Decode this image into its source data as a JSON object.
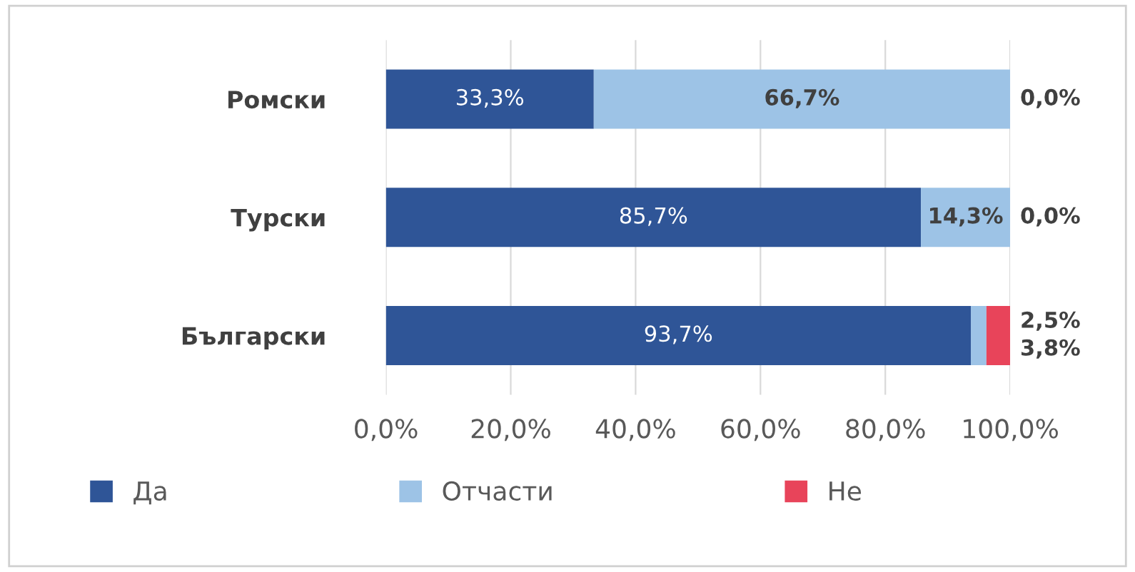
{
  "chart_data": {
    "type": "bar",
    "orientation": "horizontal",
    "stacked": true,
    "categories": [
      "Ромски",
      "Турски",
      "Български"
    ],
    "series": [
      {
        "name": "Да",
        "color": "#2f5597",
        "values": [
          33.3,
          85.7,
          93.7
        ],
        "value_labels": [
          "33,3%",
          "85,7%",
          "93,7%"
        ]
      },
      {
        "name": "Отчасти",
        "color": "#9dc3e6",
        "values": [
          66.7,
          14.3,
          2.5
        ],
        "value_labels": [
          "66,7%",
          "14,3%",
          "2,5%"
        ]
      },
      {
        "name": "Не",
        "color": "#e8445a",
        "values": [
          0.0,
          0.0,
          3.8
        ],
        "value_labels": [
          "0,0%",
          "0,0%",
          "3,8%"
        ]
      }
    ],
    "xlim": [
      0,
      100
    ],
    "xticks": [
      {
        "value": 0,
        "label": "0,0%"
      },
      {
        "value": 20,
        "label": "20,0%"
      },
      {
        "value": 40,
        "label": "40,0%"
      },
      {
        "value": 60,
        "label": "60,0%"
      },
      {
        "value": 80,
        "label": "80,0%"
      },
      {
        "value": 100,
        "label": "100,0%"
      }
    ],
    "grid": "x",
    "legend": "bottom"
  }
}
